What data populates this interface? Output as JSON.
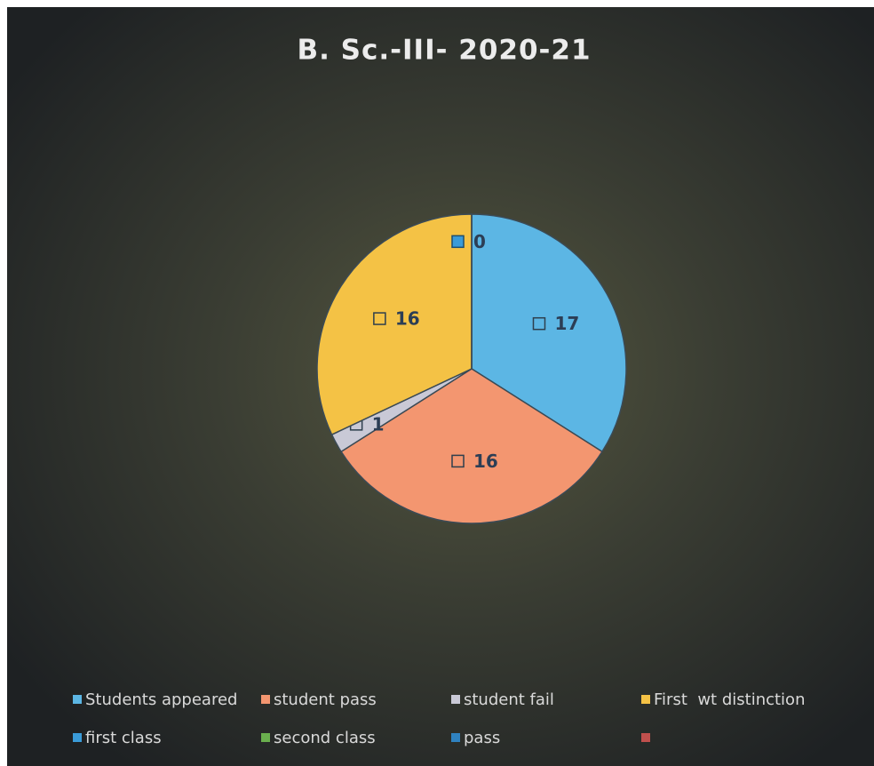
{
  "chart_data": {
    "type": "pie",
    "title": "B. Sc.-III- 2020-21",
    "categories": [
      "Students appeared",
      "student pass",
      "student fail",
      "First  wt distinction",
      "first class",
      "second class",
      "pass",
      null
    ],
    "values": [
      17,
      16,
      1,
      16,
      0,
      null,
      null,
      null
    ],
    "colors": [
      "#5cb6e4",
      "#f39670",
      "#c9c9d6",
      "#f4c245",
      "#3a9bd8",
      "#6aaf4e",
      "#2f82c0",
      "#c0504d"
    ],
    "legend": "bottom"
  }
}
